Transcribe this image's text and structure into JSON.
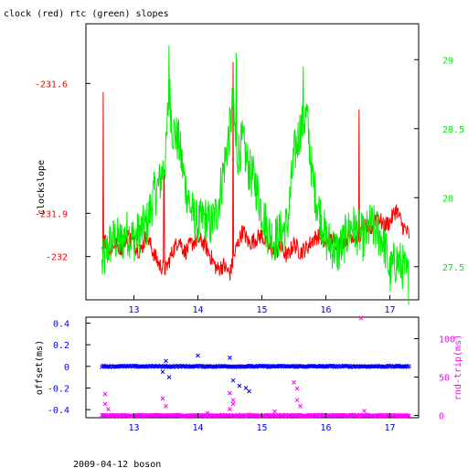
{
  "title": "clock (red) rtc (green) slopes",
  "footer": "2009-04-12 boson",
  "colors": {
    "red": "#ff0000",
    "green": "#00ee00",
    "blue": "#0000ff",
    "magenta": "#ff00ff",
    "axis": "#000000"
  },
  "chart_data": [
    {
      "type": "line",
      "x_ticks": [
        "13",
        "14",
        "15",
        "16",
        "17"
      ],
      "xlim": [
        12.25,
        17.45
      ],
      "left_axis": {
        "label": "clockslope",
        "ticks": [
          "-231.6",
          "-231.9",
          "-232"
        ],
        "tick_values": [
          -231.6,
          -231.9,
          -232.0
        ],
        "ylim": [
          -232.1,
          -231.462
        ],
        "color": "#ff0000"
      },
      "right_axis": {
        "ticks": [
          "29",
          "28.5",
          "28",
          "27.5"
        ],
        "tick_values": [
          29,
          28.5,
          28,
          27.5
        ],
        "ylim": [
          27.26,
          29.26
        ],
        "color": "#00ee00"
      },
      "series": [
        {
          "axis": "left",
          "color": "#ff0000",
          "points": [
            [
              12.5,
              -231.98
            ],
            [
              12.55,
              -231.96
            ],
            [
              12.6,
              -231.99
            ],
            [
              12.7,
              -231.97
            ],
            [
              12.8,
              -231.98
            ],
            [
              12.9,
              -231.95
            ],
            [
              13.0,
              -231.97
            ],
            [
              13.1,
              -231.99
            ],
            [
              13.2,
              -231.95
            ],
            [
              13.3,
              -231.99
            ],
            [
              13.4,
              -232.02
            ],
            [
              13.5,
              -232.03
            ],
            [
              13.6,
              -231.99
            ],
            [
              13.7,
              -231.96
            ],
            [
              13.8,
              -231.99
            ],
            [
              13.9,
              -231.97
            ],
            [
              14.0,
              -231.96
            ],
            [
              14.1,
              -231.97
            ],
            [
              14.2,
              -232.0
            ],
            [
              14.3,
              -232.03
            ],
            [
              14.4,
              -232.02
            ],
            [
              14.5,
              -232.04
            ],
            [
              14.6,
              -231.98
            ],
            [
              14.7,
              -231.94
            ],
            [
              14.8,
              -231.97
            ],
            [
              14.9,
              -231.96
            ],
            [
              15.0,
              -231.95
            ],
            [
              15.1,
              -231.98
            ],
            [
              15.2,
              -231.99
            ],
            [
              15.3,
              -231.98
            ],
            [
              15.4,
              -232.0
            ],
            [
              15.5,
              -231.97
            ],
            [
              15.6,
              -231.99
            ],
            [
              15.7,
              -231.98
            ],
            [
              15.8,
              -231.96
            ],
            [
              15.9,
              -231.95
            ],
            [
              16.0,
              -231.97
            ],
            [
              16.1,
              -231.96
            ],
            [
              16.2,
              -231.97
            ],
            [
              16.3,
              -231.96
            ],
            [
              16.4,
              -231.95
            ],
            [
              16.5,
              -231.96
            ],
            [
              16.6,
              -231.93
            ],
            [
              16.7,
              -231.94
            ],
            [
              16.8,
              -231.9
            ],
            [
              16.9,
              -231.93
            ],
            [
              17.0,
              -231.92
            ],
            [
              17.1,
              -231.89
            ],
            [
              17.2,
              -231.93
            ],
            [
              17.3,
              -231.95
            ]
          ],
          "spikes": [
            [
              12.52,
              -231.62
            ],
            [
              13.47,
              -231.8
            ],
            [
              14.55,
              -231.55
            ],
            [
              16.52,
              -231.66
            ]
          ]
        },
        {
          "axis": "right",
          "color": "#00ee00",
          "points": [
            [
              12.5,
              27.5
            ],
            [
              12.6,
              27.65
            ],
            [
              12.7,
              27.7
            ],
            [
              12.8,
              27.68
            ],
            [
              12.9,
              27.75
            ],
            [
              13.0,
              27.7
            ],
            [
              13.1,
              27.75
            ],
            [
              13.2,
              27.8
            ],
            [
              13.3,
              28.0
            ],
            [
              13.4,
              28.1
            ],
            [
              13.5,
              28.3
            ],
            [
              13.55,
              28.8
            ],
            [
              13.6,
              28.5
            ],
            [
              13.7,
              28.4
            ],
            [
              13.8,
              28.1
            ],
            [
              13.9,
              27.9
            ],
            [
              14.0,
              27.8
            ],
            [
              14.1,
              27.85
            ],
            [
              14.2,
              27.8
            ],
            [
              14.3,
              27.9
            ],
            [
              14.4,
              28.2
            ],
            [
              14.5,
              28.5
            ],
            [
              14.55,
              28.7
            ],
            [
              14.6,
              28.3
            ],
            [
              14.7,
              28.4
            ],
            [
              14.8,
              28.2
            ],
            [
              14.9,
              28.1
            ],
            [
              15.0,
              27.9
            ],
            [
              15.1,
              27.75
            ],
            [
              15.2,
              27.7
            ],
            [
              15.3,
              27.75
            ],
            [
              15.4,
              27.8
            ],
            [
              15.5,
              28.3
            ],
            [
              15.6,
              28.5
            ],
            [
              15.7,
              28.6
            ],
            [
              15.8,
              28.1
            ],
            [
              15.9,
              27.9
            ],
            [
              16.0,
              27.7
            ],
            [
              16.1,
              27.65
            ],
            [
              16.2,
              27.6
            ],
            [
              16.3,
              27.7
            ],
            [
              16.4,
              27.8
            ],
            [
              16.5,
              27.75
            ],
            [
              16.6,
              27.7
            ],
            [
              16.7,
              27.8
            ],
            [
              16.8,
              27.75
            ],
            [
              16.9,
              27.7
            ],
            [
              17.0,
              27.45
            ],
            [
              17.1,
              27.55
            ],
            [
              17.2,
              27.5
            ],
            [
              17.3,
              27.4
            ]
          ],
          "spikes": [
            [
              13.55,
              29.1
            ],
            [
              14.6,
              29.05
            ],
            [
              15.65,
              28.95
            ]
          ]
        }
      ]
    },
    {
      "type": "scatter",
      "x_ticks": [
        "13",
        "14",
        "15",
        "16",
        "17"
      ],
      "xlim": [
        12.25,
        17.45
      ],
      "left_axis": {
        "label": "offset(ms)",
        "ticks": [
          "0.4",
          "0.2",
          "0",
          "-0.2",
          "-0.4"
        ],
        "tick_values": [
          0.4,
          0.2,
          0,
          -0.2,
          -0.4
        ],
        "ylim": [
          -0.475,
          0.455
        ],
        "color": "#0000ff"
      },
      "right_axis": {
        "label": "rnd-trip(ms)",
        "ticks": [
          "100",
          "50",
          "0"
        ],
        "tick_values": [
          100,
          50,
          0
        ],
        "ylim": [
          -3,
          128
        ],
        "color": "#ff00ff"
      },
      "series": [
        {
          "axis": "left",
          "color": "#0000ff",
          "baseline": 0.0,
          "outliers": [
            [
              13.45,
              -0.05
            ],
            [
              13.5,
              0.05
            ],
            [
              13.55,
              -0.1
            ],
            [
              14.0,
              0.1
            ],
            [
              14.5,
              0.08
            ],
            [
              14.55,
              -0.13
            ],
            [
              14.65,
              -0.18
            ],
            [
              14.75,
              -0.2
            ],
            [
              14.8,
              -0.23
            ]
          ]
        },
        {
          "axis": "right",
          "color": "#ff00ff",
          "baseline": 0,
          "outliers": [
            [
              12.55,
              28
            ],
            [
              12.55,
              15
            ],
            [
              12.6,
              8
            ],
            [
              13.45,
              22
            ],
            [
              13.5,
              12
            ],
            [
              14.15,
              3
            ],
            [
              14.5,
              8
            ],
            [
              14.5,
              29
            ],
            [
              14.55,
              15
            ],
            [
              14.55,
              20
            ],
            [
              15.2,
              5
            ],
            [
              15.5,
              43
            ],
            [
              15.55,
              20
            ],
            [
              15.6,
              12
            ],
            [
              15.55,
              35
            ],
            [
              16.55,
              127
            ],
            [
              16.6,
              6
            ]
          ]
        }
      ]
    }
  ]
}
